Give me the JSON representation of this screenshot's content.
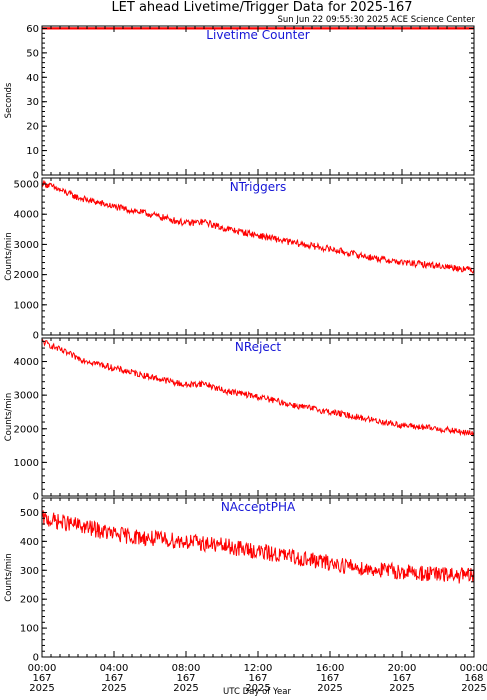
{
  "title": "LET ahead Livetime/Trigger Data for 2025-167",
  "generated": "Sun Jun 22 09:55:30 2025 ACE Science Center",
  "xlabel": "UTC Day of Year",
  "colors": {
    "series": "#ff0000",
    "panel_title": "#1515d6",
    "axes": "#000000"
  },
  "chart_data": [
    {
      "type": "line",
      "title": "Livetime Counter",
      "ylabel": "Seconds",
      "ylim": [
        0,
        61
      ],
      "yticks": [
        0,
        10,
        20,
        30,
        40,
        50,
        60
      ],
      "xlim_hours": [
        0,
        24
      ],
      "x_hours": [
        0,
        24
      ],
      "values": [
        60,
        60
      ],
      "series_color": "#ff0000"
    },
    {
      "type": "line",
      "title": "NTriggers",
      "ylabel": "Counts/min",
      "ylim": [
        0,
        5200
      ],
      "yticks": [
        0,
        1000,
        2000,
        3000,
        4000,
        5000
      ],
      "xlim_hours": [
        0,
        24
      ],
      "x_hours": [
        0,
        2,
        4,
        6,
        8,
        9,
        10,
        12,
        14,
        16,
        18,
        20,
        22,
        24
      ],
      "values": [
        5050,
        4550,
        4250,
        4000,
        3700,
        3750,
        3550,
        3300,
        3050,
        2850,
        2600,
        2400,
        2300,
        2150
      ],
      "noise": 110,
      "series_color": "#ff0000"
    },
    {
      "type": "line",
      "title": "NReject",
      "ylabel": "Counts/min",
      "ylim": [
        0,
        4700
      ],
      "yticks": [
        0,
        1000,
        2000,
        3000,
        4000
      ],
      "xlim_hours": [
        0,
        24
      ],
      "x_hours": [
        0,
        2,
        4,
        6,
        8,
        9,
        10,
        12,
        14,
        16,
        18,
        20,
        22,
        24
      ],
      "values": [
        4600,
        4100,
        3800,
        3550,
        3300,
        3350,
        3150,
        2950,
        2700,
        2500,
        2300,
        2100,
        2000,
        1850
      ],
      "noise": 95,
      "series_color": "#ff0000"
    },
    {
      "type": "line",
      "title": "NAcceptPHA",
      "ylabel": "Counts/min",
      "ylim": [
        0,
        550
      ],
      "yticks": [
        0,
        100,
        200,
        300,
        400,
        500
      ],
      "xlim_hours": [
        0,
        24
      ],
      "x_hours": [
        0,
        2,
        4,
        6,
        8,
        10,
        12,
        14,
        16,
        18,
        20,
        22,
        24
      ],
      "values": [
        480,
        455,
        425,
        410,
        400,
        385,
        365,
        345,
        325,
        305,
        295,
        285,
        280
      ],
      "noise": 28,
      "series_color": "#ff0000"
    }
  ],
  "xticks": [
    {
      "hour": 0,
      "lines": [
        "00:00",
        "167",
        "2025"
      ]
    },
    {
      "hour": 4,
      "lines": [
        "04:00",
        "167",
        "2025"
      ]
    },
    {
      "hour": 8,
      "lines": [
        "08:00",
        "167",
        "2025"
      ]
    },
    {
      "hour": 12,
      "lines": [
        "12:00",
        "167",
        "2025"
      ]
    },
    {
      "hour": 16,
      "lines": [
        "16:00",
        "167",
        "2025"
      ]
    },
    {
      "hour": 20,
      "lines": [
        "20:00",
        "167",
        "2025"
      ]
    },
    {
      "hour": 24,
      "lines": [
        "00:00",
        "168",
        "2025"
      ]
    }
  ]
}
